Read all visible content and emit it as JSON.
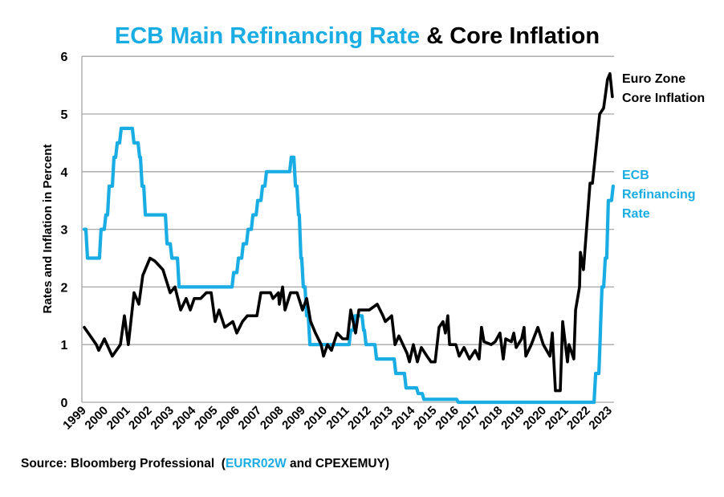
{
  "chart_data": {
    "type": "line",
    "title": {
      "part1": "ECB Main Refinancing Rate",
      "part2": " & Core Inflation"
    },
    "ylabel": "Rates and Inflation in Percent",
    "xlabel": "",
    "ylim": [
      0,
      6
    ],
    "yticks": [
      "0",
      "1",
      "2",
      "3",
      "4",
      "5",
      "6"
    ],
    "xticks": [
      "1999",
      "2000",
      "2001",
      "2002",
      "2003",
      "2004",
      "2005",
      "2006",
      "2007",
      "2008",
      "2009",
      "2010",
      "2011",
      "2012",
      "2013",
      "2014",
      "2015",
      "2016",
      "2017",
      "2018",
      "2019",
      "2020",
      "2021",
      "2022",
      "2023"
    ],
    "grid": true,
    "legend_placement": "right, inline labels",
    "series": [
      {
        "name": "Euro Zone Core Inflation",
        "label_lines": [
          "Euro Zone",
          "Core Inflation"
        ],
        "color": "#000000",
        "step": false,
        "points": [
          [
            1999.0,
            1.3
          ],
          [
            1999.55,
            1.0
          ],
          [
            1999.66,
            0.9
          ],
          [
            1999.92,
            1.1
          ],
          [
            2000.28,
            0.8
          ],
          [
            2000.65,
            1.0
          ],
          [
            2000.83,
            1.5
          ],
          [
            2001.01,
            1.0
          ],
          [
            2001.27,
            1.9
          ],
          [
            2001.49,
            1.7
          ],
          [
            2001.67,
            2.2
          ],
          [
            2002.0,
            2.5
          ],
          [
            2002.22,
            2.45
          ],
          [
            2002.59,
            2.3
          ],
          [
            2002.92,
            1.9
          ],
          [
            2003.14,
            2.0
          ],
          [
            2003.4,
            1.6
          ],
          [
            2003.65,
            1.8
          ],
          [
            2003.84,
            1.6
          ],
          [
            2004.02,
            1.8
          ],
          [
            2004.31,
            1.8
          ],
          [
            2004.57,
            1.9
          ],
          [
            2004.79,
            1.9
          ],
          [
            2004.97,
            1.4
          ],
          [
            2005.15,
            1.6
          ],
          [
            2005.41,
            1.3
          ],
          [
            2005.78,
            1.4
          ],
          [
            2005.96,
            1.2
          ],
          [
            2006.22,
            1.4
          ],
          [
            2006.44,
            1.5
          ],
          [
            2006.88,
            1.5
          ],
          [
            2007.06,
            1.9
          ],
          [
            2007.5,
            1.9
          ],
          [
            2007.61,
            1.8
          ],
          [
            2007.86,
            1.9
          ],
          [
            2007.9,
            1.7
          ],
          [
            2008.05,
            2.0
          ],
          [
            2008.16,
            1.6
          ],
          [
            2008.41,
            1.9
          ],
          [
            2008.71,
            1.9
          ],
          [
            2008.96,
            1.6
          ],
          [
            2009.15,
            1.8
          ],
          [
            2009.33,
            1.4
          ],
          [
            2009.55,
            1.2
          ],
          [
            2009.81,
            1.0
          ],
          [
            2009.92,
            0.8
          ],
          [
            2010.1,
            1.0
          ],
          [
            2010.28,
            0.9
          ],
          [
            2010.54,
            1.2
          ],
          [
            2010.79,
            1.1
          ],
          [
            2011.01,
            1.1
          ],
          [
            2011.16,
            1.6
          ],
          [
            2011.38,
            1.2
          ],
          [
            2011.53,
            1.6
          ],
          [
            2012.0,
            1.6
          ],
          [
            2012.37,
            1.7
          ],
          [
            2012.63,
            1.5
          ],
          [
            2012.74,
            1.4
          ],
          [
            2013.03,
            1.5
          ],
          [
            2013.18,
            1.0
          ],
          [
            2013.36,
            1.15
          ],
          [
            2013.73,
            0.85
          ],
          [
            2013.84,
            0.7
          ],
          [
            2014.02,
            1.0
          ],
          [
            2014.2,
            0.7
          ],
          [
            2014.38,
            0.95
          ],
          [
            2014.64,
            0.8
          ],
          [
            2014.82,
            0.7
          ],
          [
            2015.01,
            0.7
          ],
          [
            2015.19,
            1.3
          ],
          [
            2015.37,
            1.4
          ],
          [
            2015.48,
            1.2
          ],
          [
            2015.59,
            1.5
          ],
          [
            2015.67,
            1.0
          ],
          [
            2015.96,
            1.0
          ],
          [
            2016.11,
            0.8
          ],
          [
            2016.33,
            0.95
          ],
          [
            2016.58,
            0.75
          ],
          [
            2016.84,
            0.9
          ],
          [
            2017.02,
            0.75
          ],
          [
            2017.13,
            1.3
          ],
          [
            2017.24,
            1.05
          ],
          [
            2017.57,
            1.0
          ],
          [
            2017.75,
            1.05
          ],
          [
            2017.97,
            1.2
          ],
          [
            2018.12,
            0.75
          ],
          [
            2018.23,
            1.1
          ],
          [
            2018.49,
            1.05
          ],
          [
            2018.6,
            1.2
          ],
          [
            2018.71,
            0.95
          ],
          [
            2018.96,
            1.1
          ],
          [
            2019.07,
            1.3
          ],
          [
            2019.15,
            0.8
          ],
          [
            2019.4,
            1.0
          ],
          [
            2019.7,
            1.3
          ],
          [
            2019.95,
            1.0
          ],
          [
            2020.25,
            0.8
          ],
          [
            2020.36,
            1.2
          ],
          [
            2020.5,
            0.2
          ],
          [
            2020.72,
            0.2
          ],
          [
            2020.83,
            1.4
          ],
          [
            2021.05,
            0.7
          ],
          [
            2021.12,
            1.0
          ],
          [
            2021.34,
            0.75
          ],
          [
            2021.42,
            1.6
          ],
          [
            2021.6,
            2.0
          ],
          [
            2021.64,
            2.6
          ],
          [
            2021.78,
            2.3
          ],
          [
            2022.08,
            3.8
          ],
          [
            2022.19,
            3.8
          ],
          [
            2022.52,
            5.0
          ],
          [
            2022.7,
            5.1
          ],
          [
            2022.88,
            5.6
          ],
          [
            2022.99,
            5.7
          ],
          [
            2023.1,
            5.3
          ]
        ]
      },
      {
        "name": "ECB Refinancing Rate",
        "label_lines": [
          "ECB",
          "Refinancing",
          "Rate"
        ],
        "color": "#1AADE4",
        "step": true,
        "points": [
          [
            1999.0,
            3.0
          ],
          [
            1999.11,
            2.5
          ],
          [
            1999.73,
            3.0
          ],
          [
            1999.95,
            3.25
          ],
          [
            2000.1,
            3.75
          ],
          [
            2000.32,
            4.25
          ],
          [
            2000.47,
            4.5
          ],
          [
            2000.65,
            4.75
          ],
          [
            2001.23,
            4.5
          ],
          [
            2001.49,
            4.25
          ],
          [
            2001.6,
            3.75
          ],
          [
            2001.75,
            3.25
          ],
          [
            2002.74,
            2.75
          ],
          [
            2002.96,
            2.5
          ],
          [
            2003.29,
            2.0
          ],
          [
            2005.78,
            2.25
          ],
          [
            2006.0,
            2.5
          ],
          [
            2006.22,
            2.75
          ],
          [
            2006.44,
            3.0
          ],
          [
            2006.66,
            3.25
          ],
          [
            2006.88,
            3.5
          ],
          [
            2007.1,
            3.75
          ],
          [
            2007.28,
            4.0
          ],
          [
            2008.41,
            4.25
          ],
          [
            2008.6,
            3.75
          ],
          [
            2008.74,
            3.25
          ],
          [
            2008.85,
            2.5
          ],
          [
            2008.96,
            2.0
          ],
          [
            2009.11,
            1.5
          ],
          [
            2009.26,
            1.0
          ],
          [
            2011.12,
            1.25
          ],
          [
            2011.31,
            1.5
          ],
          [
            2011.71,
            1.25
          ],
          [
            2011.82,
            1.0
          ],
          [
            2012.3,
            0.75
          ],
          [
            2013.18,
            0.5
          ],
          [
            2013.65,
            0.25
          ],
          [
            2014.2,
            0.15
          ],
          [
            2014.46,
            0.05
          ],
          [
            2016.03,
            0.0
          ],
          [
            2022.3,
            0.5
          ],
          [
            2022.52,
            1.25
          ],
          [
            2022.59,
            2.0
          ],
          [
            2022.74,
            2.5
          ],
          [
            2022.88,
            3.5
          ],
          [
            2023.1,
            3.75
          ]
        ]
      }
    ]
  },
  "footer": {
    "prefix": "Source: Bloomberg Professional  (",
    "code1": "EURR02W",
    "middle": " and CPEXEMUY)"
  },
  "colors": {
    "accent": "#1AADE4",
    "text": "#000000",
    "grid": "#A6A6A6"
  }
}
